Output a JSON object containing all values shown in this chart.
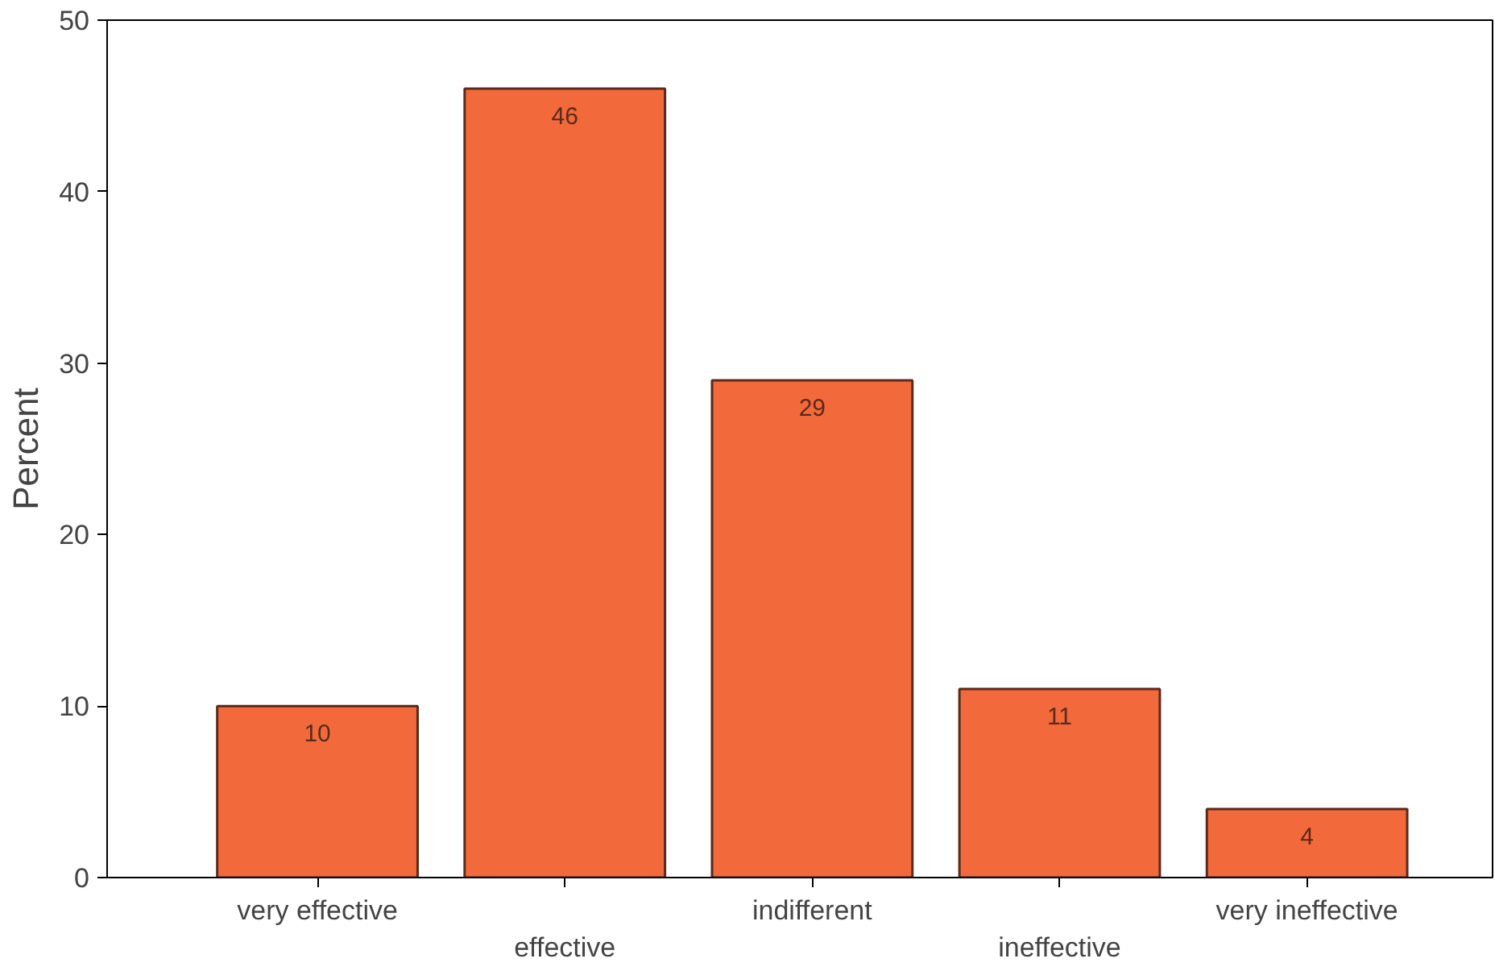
{
  "chart_data": {
    "type": "bar",
    "ylabel": "Percent",
    "categories": [
      "very effective",
      "effective",
      "indifferent",
      "ineffective",
      "very ineffective"
    ],
    "values": [
      10,
      46,
      29,
      11,
      4
    ],
    "color": "#f26a3c",
    "ylim": [
      0,
      50
    ],
    "yticks": [
      0,
      10,
      20,
      30,
      40,
      50
    ],
    "data_labels": true,
    "grid": false
  }
}
